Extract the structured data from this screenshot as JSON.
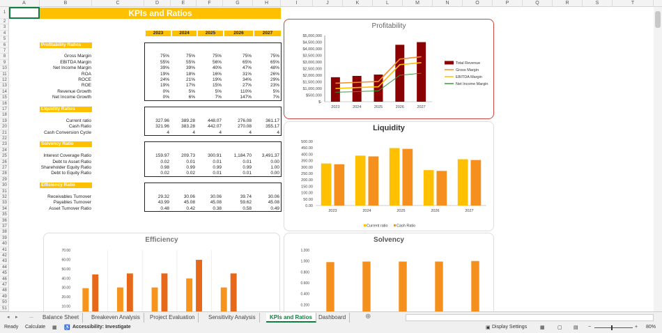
{
  "columns": [
    "A",
    "B",
    "C",
    "D",
    "E",
    "F",
    "G",
    "H",
    "I",
    "J",
    "K",
    "L",
    "M",
    "N",
    "O",
    "P",
    "Q",
    "R",
    "S",
    "T"
  ],
  "title": "KPIs and Ratios",
  "years": [
    "2023",
    "2024",
    "2025",
    "2026",
    "2027"
  ],
  "sections": [
    {
      "name": "Profitability Ratios",
      "rows": [
        {
          "label": "Gross Margin",
          "values": [
            "75%",
            "75%",
            "75%",
            "75%",
            "75%"
          ]
        },
        {
          "label": "EBITDA Margin",
          "values": [
            "55%",
            "55%",
            "56%",
            "65%",
            "65%"
          ]
        },
        {
          "label": "Net Income Margin",
          "values": [
            "39%",
            "39%",
            "40%",
            "47%",
            "48%"
          ]
        },
        {
          "label": "ROA",
          "values": [
            "19%",
            "18%",
            "16%",
            "31%",
            "26%"
          ]
        },
        {
          "label": "ROCE",
          "values": [
            "24%",
            "21%",
            "19%",
            "34%",
            "29%"
          ]
        },
        {
          "label": "ROE",
          "values": [
            "19%",
            "17%",
            "15%",
            "27%",
            "23%"
          ]
        },
        {
          "label": "Revenue Growth",
          "values": [
            "0%",
            "5%",
            "5%",
            "110%",
            "5%"
          ]
        },
        {
          "label": "Net Income Growth",
          "values": [
            "0%",
            "6%",
            "7%",
            "147%",
            "7%"
          ]
        }
      ]
    },
    {
      "name": "Liquidity Ratios",
      "rows": [
        {
          "label": "Current ratio",
          "values": [
            "327.96",
            "389.28",
            "448.07",
            "276.08",
            "361.17"
          ]
        },
        {
          "label": "Cash Ratio",
          "values": [
            "321.96",
            "383.28",
            "442.07",
            "270.08",
            "355.17"
          ]
        },
        {
          "label": "Cash Conversion Cycle",
          "values": [
            "4",
            "4",
            "4",
            "4",
            "4"
          ]
        }
      ]
    },
    {
      "name": "Solvency Ratio",
      "rows": [
        {
          "label": "Interest Coverage Ratio",
          "values": [
            "159.97",
            "209.73",
            "300.91",
            "1,184.70",
            "3,491.37"
          ]
        },
        {
          "label": "Debt to Asset Ratio",
          "values": [
            "0.02",
            "0.01",
            "0.01",
            "0.01",
            "0.00"
          ]
        },
        {
          "label": "Shareholder Equity Ratio",
          "values": [
            "0.98",
            "0.99",
            "0.99",
            "0.99",
            "1.00"
          ]
        },
        {
          "label": "Debt to Equity Ratio",
          "values": [
            "0.02",
            "0.02",
            "0.01",
            "0.01",
            "0.00"
          ]
        }
      ]
    },
    {
      "name": "Efficiency Ratio",
      "rows": [
        {
          "label": "Receivables Turnover",
          "values": [
            "29.32",
            "30.06",
            "30.06",
            "39.74",
            "30.06"
          ]
        },
        {
          "label": "Payables Turnover",
          "values": [
            "43.99",
            "45.08",
            "45.08",
            "59.62",
            "45.08"
          ]
        },
        {
          "label": "Asset Turnover Ratio",
          "values": [
            "0.48",
            "0.42",
            "0.38",
            "0.58",
            "0.49"
          ]
        }
      ]
    }
  ],
  "chart_data": [
    {
      "type": "bar+line",
      "title": "Profitability",
      "categories": [
        "2023",
        "2024",
        "2025",
        "2026",
        "2027"
      ],
      "ylim": [
        0,
        5000000
      ],
      "yticks": [
        "$-",
        "$500,000",
        "$1,000,000",
        "$1,500,000",
        "$2,000,000",
        "$2,500,000",
        "$3,000,000",
        "$3,500,000",
        "$4,000,000",
        "$4,500,000",
        "$5,000,000"
      ],
      "legend": "right",
      "series": [
        {
          "name": "Total Revenue",
          "kind": "bar",
          "color": "#8b0000",
          "values": [
            1850000,
            1950000,
            2050000,
            4300000,
            4500000
          ]
        },
        {
          "name": "Gross Margin",
          "kind": "line",
          "color": "#f28e2b",
          "values": [
            1400000,
            1460000,
            1530000,
            3220000,
            3400000
          ]
        },
        {
          "name": "EBITDA Margin",
          "kind": "line",
          "color": "#ffc000",
          "values": [
            1000000,
            1070000,
            1130000,
            2800000,
            2950000
          ]
        },
        {
          "name": "Net Income Margin",
          "kind": "line",
          "color": "#3a9a3a",
          "values": [
            720000,
            760000,
            820000,
            2000000,
            2150000
          ]
        }
      ]
    },
    {
      "type": "bar",
      "title": "Liquidity",
      "categories": [
        "2023",
        "2024",
        "2025",
        "2026",
        "2027"
      ],
      "ylim": [
        0,
        500
      ],
      "yticks": [
        "0.00",
        "50.00",
        "100.00",
        "150.00",
        "200.00",
        "250.00",
        "300.00",
        "350.00",
        "400.00",
        "450.00",
        "500.00"
      ],
      "legend": "bottom",
      "series": [
        {
          "name": "Current ratio",
          "color": "#ffc000",
          "values": [
            327.96,
            389.28,
            448.07,
            276.08,
            361.17
          ]
        },
        {
          "name": "Cash Ratio",
          "color": "#f5901e",
          "values": [
            321.96,
            383.28,
            442.07,
            270.08,
            355.17
          ]
        }
      ]
    },
    {
      "type": "bar",
      "title": "Efficiency",
      "categories": [
        "2023",
        "2024",
        "2025",
        "2026",
        "2027"
      ],
      "ylim": [
        0,
        70
      ],
      "yticks": [
        "0.00",
        "10.00",
        "20.00",
        "30.00",
        "40.00",
        "50.00",
        "60.00",
        "70.00"
      ],
      "series": [
        {
          "color": "#f7941d",
          "values": [
            29.32,
            30.06,
            30.06,
            39.74,
            30.06
          ]
        },
        {
          "color": "#e8681a",
          "values": [
            43.99,
            45.08,
            45.08,
            59.62,
            45.08
          ]
        }
      ]
    },
    {
      "type": "bar",
      "title": "Solvency",
      "categories": [
        "2023",
        "2024",
        "2025",
        "2026",
        "2027"
      ],
      "ylim": [
        0,
        1.2
      ],
      "yticks": [
        "0.000",
        "0.200",
        "0.400",
        "0.600",
        "0.800",
        "1.000",
        "1.200"
      ],
      "series": [
        {
          "color": "#ffc000",
          "values": [
            0.02,
            0.01,
            0.01,
            0.01,
            0.0
          ]
        },
        {
          "color": "#f5901e",
          "values": [
            0.98,
            0.99,
            0.99,
            0.99,
            1.0
          ]
        },
        {
          "color": "#c0803a",
          "values": [
            0.02,
            0.02,
            0.01,
            0.01,
            0.0
          ]
        }
      ]
    }
  ],
  "sheet_tabs": [
    "Balance Sheet",
    "Breakeven Analysis",
    "Project Evaluation",
    "Sensitivity Analysis",
    "KPIs and Ratios",
    "Dashboard"
  ],
  "active_tab": "KPIs and Ratios",
  "tab_nav": {
    "more": "..."
  },
  "status": {
    "ready": "Ready",
    "calculate": "Calculate",
    "accessibility": "Accessibility: Investigate",
    "display_settings": "Display Settings",
    "zoom": "80%"
  }
}
